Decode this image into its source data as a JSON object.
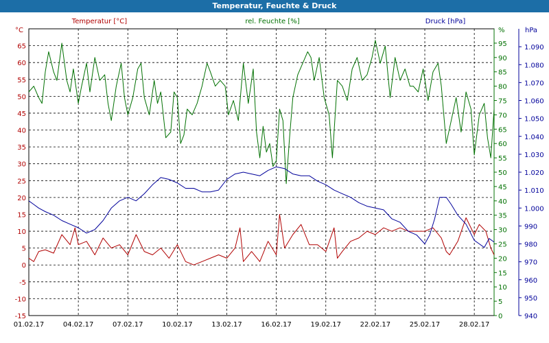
{
  "window": {
    "title": "Temperatur, Feuchte & Druck"
  },
  "colors": {
    "temperature": "#b00000",
    "humidity": "#007000",
    "pressure": "#00009a",
    "titlebar": "#1c6ea7"
  },
  "chart_data": {
    "type": "line",
    "title": "Temperatur, Feuchte & Druck",
    "x_ticks": [
      "01.02.17",
      "04.02.17",
      "07.02.17",
      "10.02.17",
      "13.02.17",
      "16.02.17",
      "19.02.17",
      "22.02.17",
      "25.02.17",
      "28.02.17"
    ],
    "xlim_days": [
      0,
      28.2
    ],
    "axes": {
      "temperature": {
        "unit": "°C",
        "label": "Temperatur [°C]",
        "ylim": [
          -15,
          70
        ],
        "ticks": [
          "-15",
          "-10",
          "-5",
          "0",
          "5",
          "10",
          "15",
          "20",
          "25",
          "30",
          "35",
          "40",
          "45",
          "50",
          "55",
          "60",
          "65"
        ]
      },
      "humidity": {
        "unit": "%",
        "label": "rel. Feuchte [%]",
        "ylim": [
          0,
          100
        ],
        "ticks": [
          "0",
          "5",
          "10",
          "15",
          "20",
          "25",
          "30",
          "35",
          "40",
          "45",
          "50",
          "55",
          "60",
          "65",
          "70",
          "75",
          "80",
          "85",
          "90",
          "95"
        ]
      },
      "pressure": {
        "unit": "hPa",
        "label": "Druck [hPa]",
        "ylim": [
          940,
          1100
        ],
        "ticks": [
          "940",
          "950",
          "960",
          "970",
          "980",
          "990",
          "1.000",
          "1.010",
          "1.020",
          "1.030",
          "1.040",
          "1.050",
          "1.060",
          "1.070",
          "1.080",
          "1.090"
        ]
      }
    },
    "series": [
      {
        "name": "Temperatur [°C]",
        "axis": "temperature",
        "x": [
          0,
          0.3,
          0.6,
          1,
          1.5,
          2,
          2.5,
          2.8,
          3,
          3.5,
          4,
          4.5,
          5,
          5.5,
          6,
          6.5,
          7,
          7.5,
          8,
          8.5,
          9,
          9.5,
          10,
          10.5,
          11,
          11.5,
          12,
          12.5,
          12.8,
          13,
          13.5,
          14,
          14.5,
          15,
          15.2,
          15.5,
          16,
          16.5,
          17,
          17.5,
          18,
          18.5,
          18.7,
          19,
          19.5,
          20,
          20.5,
          21,
          21.5,
          22,
          22.5,
          23,
          23.5,
          24,
          24.5,
          25,
          25.3,
          25.5,
          26,
          26.5,
          27,
          27.3,
          27.7,
          28,
          28.2
        ],
        "y": [
          2,
          1,
          4,
          4.5,
          3.5,
          9,
          6,
          11,
          6,
          7,
          3,
          8,
          5,
          6,
          3,
          9,
          4,
          3,
          5,
          2,
          6,
          1,
          0,
          1,
          2,
          3,
          2,
          5,
          11,
          1,
          4,
          1,
          7,
          3,
          15,
          5,
          9,
          12,
          6,
          6,
          4,
          11,
          2,
          4,
          7,
          8,
          10,
          9,
          11,
          10,
          11,
          10,
          10,
          10,
          11,
          8,
          4,
          3,
          7,
          14,
          9,
          12,
          10,
          5,
          3
        ]
      },
      {
        "name": "rel. Feuchte [%]",
        "axis": "humidity",
        "x": [
          0,
          0.3,
          0.6,
          0.8,
          1,
          1.2,
          1.5,
          1.7,
          2,
          2.3,
          2.5,
          2.7,
          3,
          3.2,
          3.5,
          3.7,
          4,
          4.3,
          4.6,
          4.8,
          5,
          5.3,
          5.6,
          5.8,
          6,
          6.3,
          6.6,
          6.8,
          7,
          7.3,
          7.6,
          7.8,
          8,
          8.3,
          8.6,
          8.8,
          9,
          9.2,
          9.4,
          9.6,
          9.9,
          10.2,
          10.5,
          10.8,
          11,
          11.3,
          11.6,
          11.9,
          12.1,
          12.4,
          12.7,
          13,
          13.3,
          13.6,
          13.8,
          14,
          14.2,
          14.4,
          14.6,
          14.8,
          15,
          15.2,
          15.4,
          15.6,
          15.8,
          16,
          16.3,
          16.6,
          16.9,
          17.1,
          17.3,
          17.6,
          17.9,
          18.2,
          18.4,
          18.7,
          19,
          19.3,
          19.6,
          19.9,
          20.2,
          20.5,
          20.8,
          21,
          21.3,
          21.6,
          21.9,
          22.2,
          22.5,
          22.8,
          23.1,
          23.3,
          23.6,
          23.9,
          24.2,
          24.5,
          24.8,
          25,
          25.3,
          25.6,
          25.9,
          26.2,
          26.5,
          26.8,
          27,
          27.3,
          27.6,
          27.8,
          28,
          28.2
        ],
        "y": [
          78,
          80,
          76,
          74,
          85,
          92,
          85,
          82,
          95,
          82,
          78,
          86,
          74,
          80,
          88,
          78,
          90,
          82,
          84,
          74,
          68,
          80,
          88,
          76,
          70,
          76,
          86,
          88,
          76,
          70,
          82,
          74,
          78,
          62,
          64,
          78,
          76,
          60,
          63,
          72,
          70,
          74,
          80,
          88,
          85,
          80,
          82,
          80,
          70,
          75,
          68,
          88,
          74,
          86,
          64,
          55,
          66,
          57,
          60,
          52,
          54,
          72,
          68,
          46,
          62,
          76,
          84,
          88,
          92,
          90,
          82,
          90,
          76,
          70,
          55,
          82,
          80,
          75,
          86,
          90,
          82,
          84,
          90,
          96,
          88,
          94,
          76,
          90,
          82,
          86,
          80,
          80,
          78,
          86,
          75,
          85,
          88,
          80,
          60,
          68,
          76,
          64,
          78,
          72,
          56,
          70,
          74,
          62,
          55,
          72
        ]
      },
      {
        "name": "Druck [hPa]",
        "axis": "pressure",
        "x": [
          0,
          0.3,
          0.6,
          1,
          1.5,
          2,
          2.5,
          3,
          3.5,
          4,
          4.5,
          5,
          5.5,
          6,
          6.5,
          7,
          7.5,
          8,
          8.5,
          9,
          9.5,
          10,
          10.5,
          11,
          11.5,
          12,
          12.5,
          13,
          13.5,
          14,
          14.5,
          15,
          15.5,
          16,
          16.5,
          17,
          17.5,
          18,
          18.5,
          19,
          19.5,
          20,
          20.5,
          21,
          21.5,
          22,
          22.5,
          23,
          23.5,
          24,
          24.3,
          24.6,
          24.9,
          25.3,
          25.6,
          26,
          26.5,
          27,
          27.3,
          27.6,
          27.9,
          28.2
        ],
        "y": [
          1004,
          1002,
          1000,
          998,
          996,
          993,
          991,
          989,
          986,
          988,
          993,
          1000,
          1004,
          1006,
          1004,
          1008,
          1013,
          1017,
          1016,
          1014,
          1011,
          1011,
          1009,
          1009,
          1010,
          1016,
          1019,
          1020,
          1019,
          1018,
          1021,
          1023,
          1022,
          1019,
          1018,
          1018,
          1015,
          1013,
          1010,
          1008,
          1006,
          1003,
          1001,
          1000,
          999,
          994,
          992,
          987,
          985,
          980,
          985,
          994,
          1006,
          1006,
          1002,
          996,
          991,
          982,
          980,
          978,
          983,
          981
        ]
      }
    ]
  }
}
